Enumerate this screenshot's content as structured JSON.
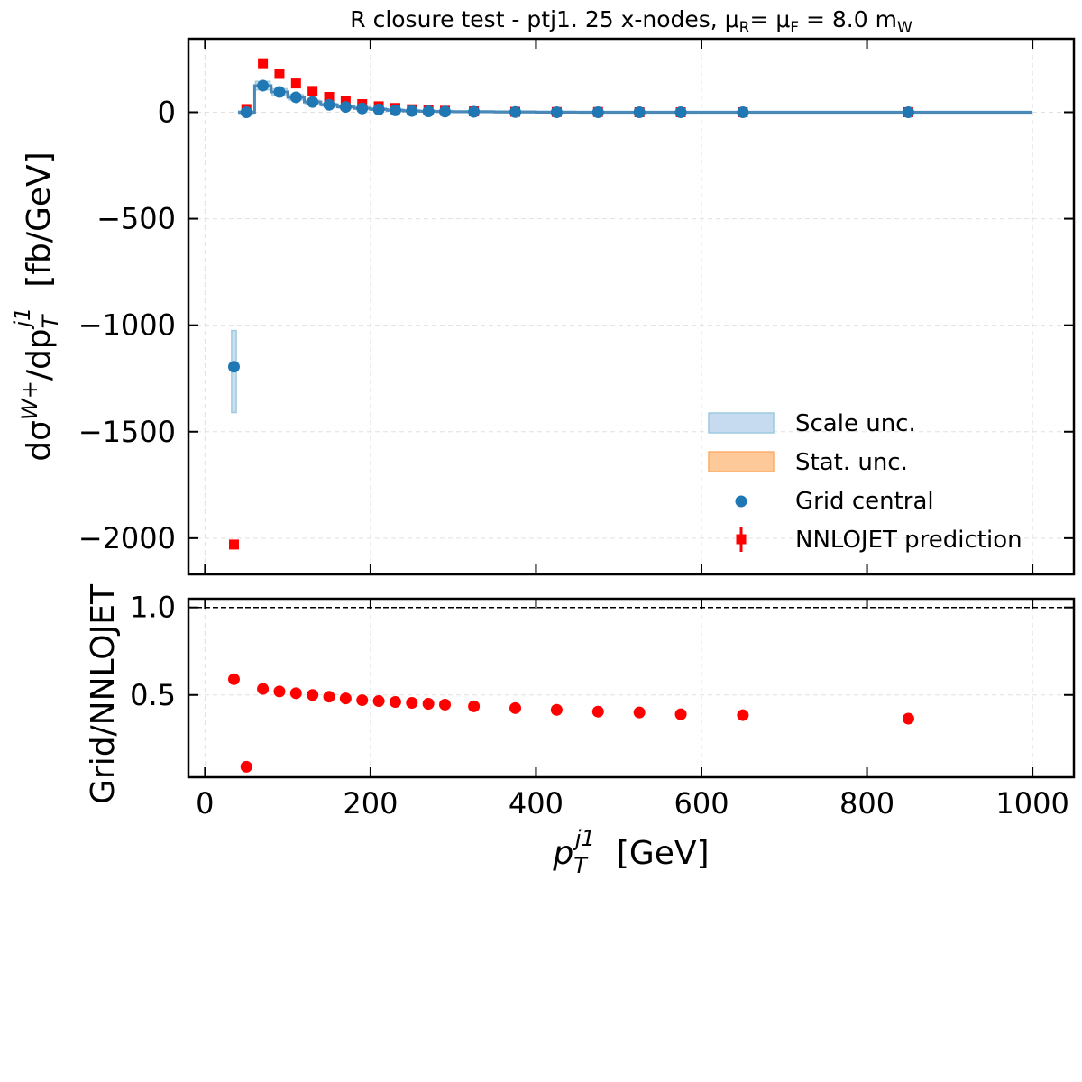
{
  "chart_data": [
    {
      "type": "scatter",
      "panel": "main",
      "title": "R closure test  -  ptj1. 25 x-nodes, μR= μF = 8.0 mW",
      "title_parts": {
        "main": "R closure test  -  ptj1. 25 x-nodes, μ",
        "sub_r": "R",
        "mid": "= μ",
        "sub_f": "F",
        "tail": " = 8.0 m",
        "sub_w": "W"
      },
      "ylabel_parts": {
        "d1": "dσ",
        "sup_w": "W",
        "sup_plus": "+",
        "mid": "/dp",
        "sub_t": "T",
        "sup_j1": "j1",
        "unit": "[fb/GeV]"
      },
      "xlim": [
        -20,
        1050
      ],
      "ylim": [
        -2170,
        345
      ],
      "xticks": [
        0,
        200,
        400,
        600,
        800,
        1000
      ],
      "yticks": [
        0,
        -500,
        -1000,
        -1500,
        -2000
      ],
      "ytick_labels": [
        "0",
        "−500",
        "−1000",
        "−1500",
        "−2000"
      ],
      "grid": true,
      "legend_position": "lower-right",
      "legend": [
        {
          "label": "Scale unc.",
          "kind": "patch",
          "color": "#c6dbef",
          "edge": "#9ecae1"
        },
        {
          "label": "Stat. unc.",
          "kind": "patch",
          "color": "#fdc999",
          "edge": "#fdae6b"
        },
        {
          "label": "Grid central",
          "kind": "dot",
          "color": "#1f77b4"
        },
        {
          "label": "NNLOJET prediction",
          "kind": "square-errorbar",
          "color": "#ff0000"
        }
      ],
      "bin_edges": [
        30,
        40,
        60,
        80,
        100,
        120,
        140,
        160,
        180,
        200,
        220,
        240,
        260,
        280,
        300,
        350,
        400,
        450,
        500,
        550,
        600,
        700,
        1000
      ],
      "series": [
        {
          "name": "Grid central",
          "color": "#1f77b4",
          "x": [
            35,
            50,
            70,
            90,
            110,
            130,
            150,
            170,
            190,
            210,
            230,
            250,
            270,
            290,
            325,
            375,
            425,
            475,
            525,
            575,
            650,
            850
          ],
          "y": [
            -1195,
            0,
            125,
            95,
            70,
            48,
            35,
            25,
            18,
            13,
            9,
            6,
            4,
            3,
            2,
            1,
            0,
            0,
            0,
            0,
            0,
            0
          ],
          "scale_unc": [
            [
              -1410,
              -1025
            ],
            [
              -6,
              6
            ],
            [
              105,
              145
            ],
            [
              80,
              110
            ],
            [
              58,
              82
            ],
            [
              40,
              56
            ],
            [
              29,
              41
            ],
            [
              20,
              30
            ],
            [
              14,
              22
            ],
            [
              10,
              16
            ],
            [
              7,
              11
            ],
            [
              4,
              8
            ],
            [
              3,
              5
            ],
            [
              2,
              4
            ],
            [
              1,
              3
            ],
            [
              0,
              2
            ],
            [
              0,
              1
            ],
            [
              0,
              0
            ],
            [
              0,
              0
            ],
            [
              0,
              0
            ],
            [
              0,
              0
            ],
            [
              0,
              0
            ]
          ]
        },
        {
          "name": "NNLOJET prediction",
          "color": "#ff0000",
          "x": [
            35,
            50,
            70,
            90,
            110,
            130,
            150,
            170,
            190,
            210,
            230,
            250,
            270,
            290,
            325,
            375,
            425,
            475,
            525,
            575,
            650,
            850
          ],
          "y": [
            -2030,
            15,
            230,
            180,
            135,
            100,
            72,
            52,
            38,
            28,
            20,
            14,
            10,
            7,
            4,
            2,
            1,
            1,
            0,
            0,
            0,
            0
          ],
          "yerr": [
            20,
            3,
            4,
            3,
            3,
            2,
            2,
            2,
            1,
            1,
            1,
            1,
            1,
            1,
            1,
            0,
            0,
            0,
            0,
            0,
            0,
            0
          ]
        }
      ]
    },
    {
      "type": "scatter",
      "panel": "ratio",
      "ylabel": "Grid/NNLOJET",
      "xlabel_parts": {
        "p": "p",
        "sub_t": "T",
        "sup_j1": "j1",
        "unit": "[GeV]"
      },
      "xlim": [
        -20,
        1050
      ],
      "ylim": [
        0.03,
        1.05
      ],
      "xticks": [
        0,
        200,
        400,
        600,
        800,
        1000
      ],
      "yticks": [
        0.5,
        1.0
      ],
      "ytick_labels": [
        "0.5",
        "1.0"
      ],
      "reference_line": 1.0,
      "grid": true,
      "series": [
        {
          "name": "",
          "color": "#ff0000",
          "x": [
            35,
            50,
            70,
            90,
            110,
            130,
            150,
            170,
            190,
            210,
            230,
            250,
            270,
            290,
            325,
            375,
            425,
            475,
            525,
            575,
            650,
            850
          ],
          "y": [
            0.59,
            0.09,
            0.535,
            0.52,
            0.51,
            0.5,
            0.49,
            0.48,
            0.47,
            0.465,
            0.46,
            0.455,
            0.45,
            0.445,
            0.435,
            0.425,
            0.415,
            0.405,
            0.4,
            0.39,
            0.385,
            0.365
          ]
        }
      ]
    }
  ]
}
